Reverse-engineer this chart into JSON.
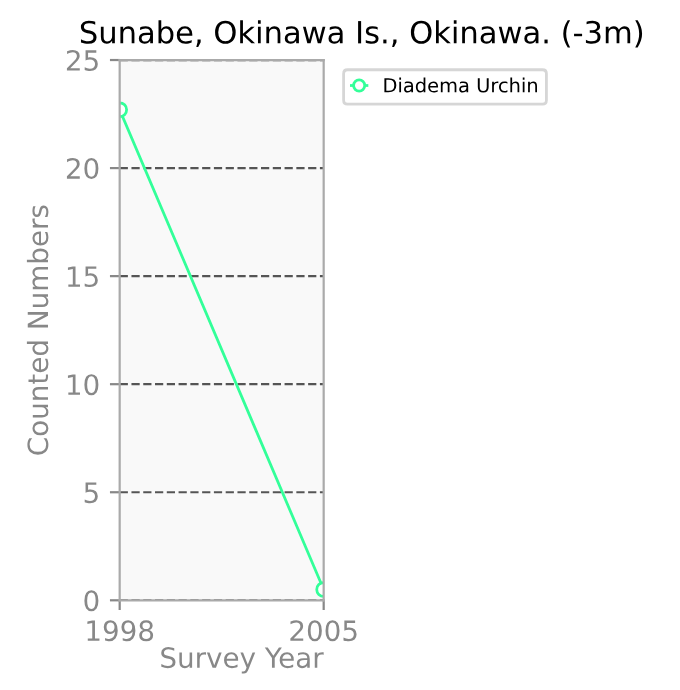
{
  "chart_data": {
    "type": "line",
    "title": "Sunabe, Okinawa Is., Okinawa. (-3m)",
    "xlabel": "Survey Year",
    "ylabel": "Counted Numbers",
    "x": [
      1998,
      2005
    ],
    "series": [
      {
        "name": "Diadema Urchin",
        "color": "#33ff99",
        "values": [
          22.7,
          0.5
        ]
      }
    ],
    "xlim": [
      1998,
      2005
    ],
    "xticks": [
      1998,
      2005
    ],
    "ylim": [
      0,
      25
    ],
    "yticks": [
      0,
      5,
      10,
      15,
      20,
      25
    ],
    "grid": "y",
    "legend": "right",
    "marker": "circle",
    "line_style": "solid"
  }
}
